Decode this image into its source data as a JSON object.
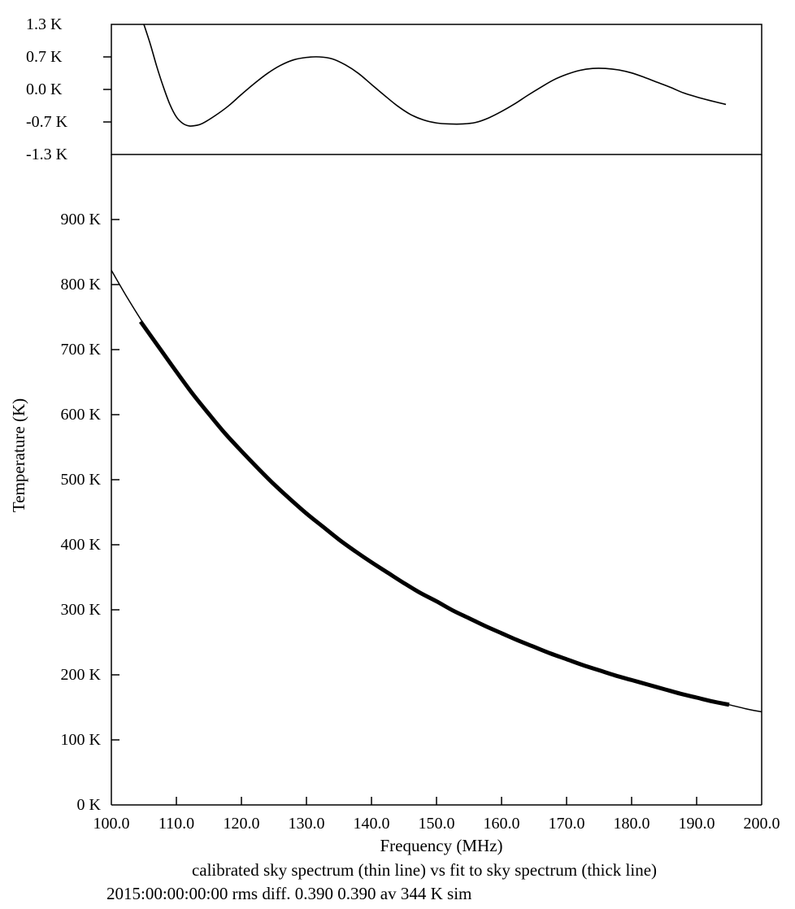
{
  "chart_data": [
    {
      "panel": "residual",
      "type": "line",
      "ylim": [
        -1.3,
        1.3
      ],
      "xlim": [
        100.0,
        200.0
      ],
      "ytick_labels": [
        {
          "value": 1.3,
          "label": "1.3 K"
        },
        {
          "value": 0.65,
          "label": "0.7 K"
        },
        {
          "value": 0.0,
          "label": "0.0 K"
        },
        {
          "value": -0.65,
          "label": "-0.7 K"
        },
        {
          "value": -1.3,
          "label": "-1.3 K"
        }
      ],
      "series": [
        {
          "style": "thin",
          "x": [
            105.0,
            106.0,
            107.0,
            108.0,
            109.0,
            110.0,
            111.0,
            112.0,
            113.0,
            114.0,
            116.0,
            118.0,
            120.0,
            122.0,
            124.0,
            126.0,
            128.0,
            130.0,
            132.0,
            134.0,
            136.0,
            138.0,
            140.0,
            142.0,
            144.0,
            146.0,
            148.0,
            150.0,
            152.0,
            154.0,
            156.0,
            158.0,
            160.0,
            162.0,
            164.0,
            166.0,
            168.0,
            170.0,
            172.0,
            174.0,
            176.0,
            178.0,
            180.0,
            182.0,
            184.0,
            186.0,
            188.0,
            190.0,
            192.0,
            194.5
          ],
          "y": [
            1.3,
            0.9,
            0.45,
            0.05,
            -0.3,
            -0.55,
            -0.68,
            -0.73,
            -0.72,
            -0.68,
            -0.52,
            -0.33,
            -0.1,
            0.12,
            0.32,
            0.48,
            0.59,
            0.64,
            0.65,
            0.61,
            0.49,
            0.32,
            0.1,
            -0.12,
            -0.33,
            -0.5,
            -0.61,
            -0.67,
            -0.69,
            -0.69,
            -0.66,
            -0.57,
            -0.44,
            -0.29,
            -0.12,
            0.04,
            0.19,
            0.3,
            0.38,
            0.42,
            0.42,
            0.39,
            0.33,
            0.24,
            0.14,
            0.04,
            -0.07,
            -0.15,
            -0.22,
            -0.3
          ]
        }
      ]
    },
    {
      "panel": "main",
      "type": "line",
      "ylabel": "Temperature (K)",
      "xlabel": "Frequency (MHz)",
      "ylim": [
        0,
        1000
      ],
      "xlim": [
        100.0,
        200.0
      ],
      "ytick_labels": [
        {
          "value": 900,
          "label": "900 K"
        },
        {
          "value": 800,
          "label": "800 K"
        },
        {
          "value": 700,
          "label": "700 K"
        },
        {
          "value": 600,
          "label": "600 K"
        },
        {
          "value": 500,
          "label": "500 K"
        },
        {
          "value": 400,
          "label": "400 K"
        },
        {
          "value": 300,
          "label": "300 K"
        },
        {
          "value": 200,
          "label": "200 K"
        },
        {
          "value": 100,
          "label": "100 K"
        },
        {
          "value": 0,
          "label": "0 K"
        }
      ],
      "xtick_labels": [
        {
          "value": 100.0,
          "label": "100.0"
        },
        {
          "value": 110.0,
          "label": "110.0"
        },
        {
          "value": 120.0,
          "label": "120.0"
        },
        {
          "value": 130.0,
          "label": "130.0"
        },
        {
          "value": 140.0,
          "label": "140.0"
        },
        {
          "value": 150.0,
          "label": "150.0"
        },
        {
          "value": 160.0,
          "label": "160.0"
        },
        {
          "value": 170.0,
          "label": "170.0"
        },
        {
          "value": 180.0,
          "label": "180.0"
        },
        {
          "value": 190.0,
          "label": "190.0"
        },
        {
          "value": 200.0,
          "label": "200.0"
        }
      ],
      "series": [
        {
          "style": "thin",
          "x": [
            100,
            102.5,
            105,
            107.5,
            110,
            112.5,
            115,
            117.5,
            120,
            122.5,
            125,
            127.5,
            130,
            132.5,
            135,
            137.5,
            140,
            142.5,
            145,
            147.5,
            150,
            152.5,
            155,
            157.5,
            160,
            162.5,
            165,
            167.5,
            170,
            172.5,
            175,
            177.5,
            180,
            182.5,
            185,
            187.5,
            190,
            192.5,
            195,
            197.5,
            200
          ],
          "y": [
            822,
            779,
            739,
            701,
            666,
            632,
            601,
            571,
            544,
            518,
            493,
            470,
            448,
            428,
            408,
            390,
            373,
            357,
            341,
            326,
            313,
            299,
            287,
            275,
            264,
            253,
            243,
            233,
            224,
            215,
            207,
            199,
            192,
            185,
            178,
            171,
            165,
            159,
            154,
            148,
            143
          ]
        },
        {
          "style": "thick",
          "x": [
            104.5,
            107.5,
            110,
            112.5,
            115,
            117.5,
            120,
            122.5,
            125,
            127.5,
            130,
            132.5,
            135,
            137.5,
            140,
            142.5,
            145,
            147.5,
            150,
            152.5,
            155,
            157.5,
            160,
            162.5,
            165,
            167.5,
            170,
            172.5,
            175,
            177.5,
            180,
            182.5,
            185,
            187.5,
            190,
            192.5,
            195
          ],
          "y": [
            743,
            701,
            666,
            632,
            601,
            571,
            544,
            518,
            493,
            470,
            448,
            428,
            408,
            390,
            373,
            357,
            341,
            326,
            313,
            299,
            287,
            275,
            264,
            253,
            243,
            233,
            224,
            215,
            207,
            199,
            192,
            185,
            178,
            171,
            165,
            159,
            154
          ]
        }
      ]
    }
  ],
  "caption": {
    "line1": "calibrated sky spectrum (thin line) vs fit to sky spectrum (thick line)",
    "line2": "2015:00:00:00:00 rms diff. 0.390 0.390 av   344 K sim"
  }
}
